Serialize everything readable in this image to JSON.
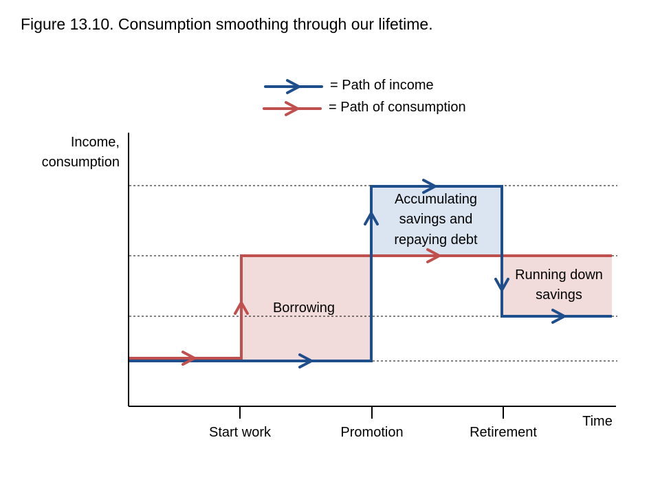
{
  "title": "Figure 13.10. Consumption smoothing through our lifetime.",
  "legend": {
    "income": "= Path of income",
    "consumption": "= Path of consumption"
  },
  "axes": {
    "ylabel_line1": "Income,",
    "ylabel_line2": "consumption",
    "xlabel": "Time",
    "ticks": [
      "Start work",
      "Promotion",
      "Retirement"
    ]
  },
  "regions": {
    "saving_line1": "Accumulating",
    "saving_line2": "savings and",
    "saving_line3": "repaying debt",
    "borrowing": "Borrowing",
    "rundown_line1": "Running down",
    "rundown_line2": "savings"
  },
  "colors": {
    "income": "#1f4e8c",
    "consumption": "#c0504d",
    "saving_fill": "#dbe5f1",
    "debt_fill": "#f2dcdb"
  }
}
